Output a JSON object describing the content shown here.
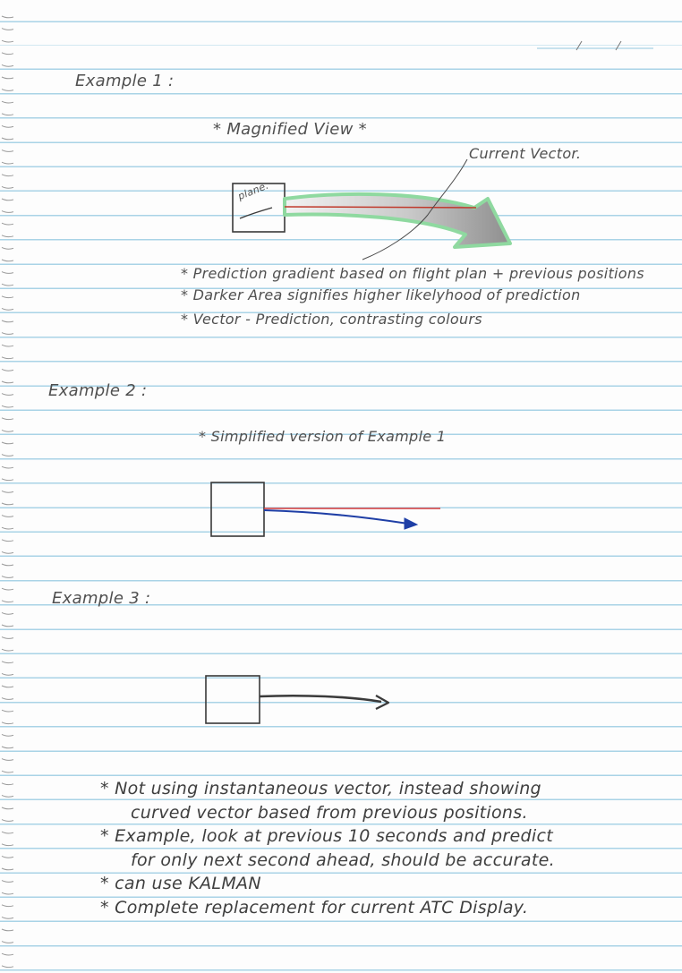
{
  "notes": {
    "example1": {
      "heading": "Example 1 :",
      "view_title": "* Magnified View *",
      "vector_label": "Current Vector.",
      "box_label": "plane.",
      "bullets": [
        "* Prediction gradient based on flight plan + previous positions",
        "* Darker Area signifies higher likelyhood of prediction",
        "* Vector - Prediction, contrasting colours"
      ]
    },
    "example2": {
      "heading": "Example 2 :",
      "note": "* Simplified version of Example 1"
    },
    "example3": {
      "heading": "Example 3 :"
    },
    "summary": [
      "* Not using instantaneous vector, instead showing",
      "curved vector based from previous positions.",
      "* Example, look at previous 10 seconds and predict",
      "for only next second ahead, should be accurate.",
      "* can use KALMAN",
      "* Complete replacement for current ATC Display."
    ],
    "colors": {
      "ruled_line": "#a9d3e6",
      "prediction_fill": "#8fd9a0",
      "current_vector": "#c0392b",
      "prediction_vector": "#1f3fa6",
      "pencil": "#3a3a3a"
    }
  }
}
